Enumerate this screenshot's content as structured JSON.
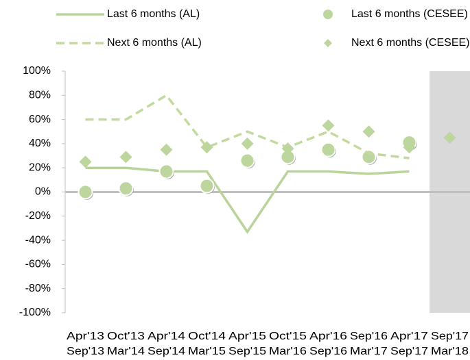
{
  "chart_data": {
    "type": "line",
    "categories": [
      [
        "Apr'13",
        "Sep'13"
      ],
      [
        "Oct'13",
        "Mar'14"
      ],
      [
        "Apr'14",
        "Sep'14"
      ],
      [
        "Oct'14",
        "Mar'15"
      ],
      [
        "Apr'15",
        "Sep'15"
      ],
      [
        "Oct'15",
        "Mar'16"
      ],
      [
        "Apr'16",
        "Sep'16"
      ],
      [
        "Sep'16",
        "Mar'17"
      ],
      [
        "Apr'17",
        "Sep'17"
      ],
      [
        "Sep'17",
        "Mar'18"
      ]
    ],
    "series": [
      {
        "name": "Last 6 months (AL)",
        "color": "#b9d49b",
        "style": "solid",
        "values": [
          20,
          20,
          17,
          17,
          -33,
          17,
          17,
          15,
          17,
          null
        ]
      },
      {
        "name": "Last 6 months (CESEE)",
        "color": "#bcd69e",
        "marker": "circle",
        "values": [
          0,
          3,
          17,
          5,
          26,
          29,
          35,
          29,
          41,
          null
        ]
      },
      {
        "name": "Next 6 months (AL)",
        "color": "#c3da9f",
        "style": "dashed",
        "values": [
          60,
          60,
          80,
          37,
          50,
          37,
          50,
          32,
          28,
          null
        ]
      },
      {
        "name": "Next 6 months (CESEE)",
        "color": "#bcd69e",
        "marker": "diamond",
        "values": [
          25,
          29,
          35,
          37,
          40,
          36,
          55,
          50,
          37,
          45
        ]
      }
    ],
    "ylim": [
      -100,
      100
    ],
    "yticks": [
      {
        "value": -100,
        "label": "-100%"
      },
      {
        "value": -80,
        "label": "-80%"
      },
      {
        "value": -60,
        "label": "-60%"
      },
      {
        "value": -40,
        "label": "-40%"
      },
      {
        "value": -20,
        "label": "-20%"
      },
      {
        "value": 0,
        "label": "0%"
      },
      {
        "value": 20,
        "label": "20%"
      },
      {
        "value": 40,
        "label": "40%"
      },
      {
        "value": 60,
        "label": "60%"
      },
      {
        "value": 80,
        "label": "80%"
      },
      {
        "value": 100,
        "label": "100%"
      }
    ],
    "shaded_category": 9
  }
}
